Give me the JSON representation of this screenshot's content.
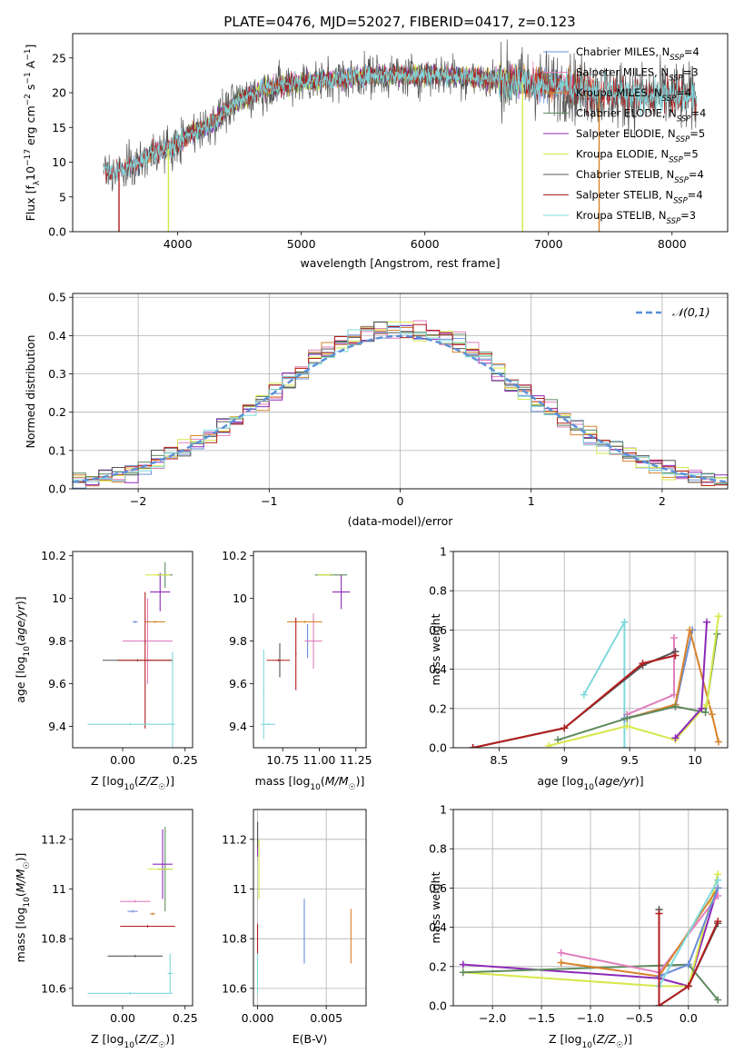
{
  "colors": {
    "Chabrier MILES": "#6a8fd8",
    "Salpeter MILES": "#e07fbf",
    "Kroupa MILES": "#d8822b",
    "Chabrier ELODIE": "#5f8a5f",
    "Salpeter ELODIE": "#8e2ab8",
    "Kroupa ELODIE": "#d6e84a",
    "Chabrier STELIB": "#555555",
    "Salpeter STELIB": "#b21e1e",
    "Kroupa STELIB": "#7fd8dc"
  },
  "chart_data": [
    {
      "id": "spectrum",
      "type": "line",
      "title": "PLATE=0476, MJD=52027, FIBERID=0417, z=0.123",
      "xlabel": "wavelength [Angstrom, rest frame]",
      "ylabel": "Flux [fλ10⁻¹⁷ erg cm⁻² s⁻¹ A⁻¹]",
      "xlim": [
        3150,
        8450
      ],
      "ylim": [
        0,
        28.5
      ],
      "xticks": [
        4000,
        5000,
        6000,
        7000,
        8000
      ],
      "yticks": [
        0,
        5,
        10,
        15,
        20,
        25
      ],
      "legend": [
        {
          "label": "Chabrier MILES, N",
          "sub": "SSP",
          "tail": "=4",
          "model": "Chabrier MILES"
        },
        {
          "label": "Salpeter MILES, N",
          "sub": "SSP",
          "tail": "=3",
          "model": "Salpeter MILES"
        },
        {
          "label": "Kroupa MILES, N",
          "sub": "SSP",
          "tail": "=4",
          "model": "Kroupa MILES"
        },
        {
          "label": "Chabrier ELODIE, N",
          "sub": "SSP",
          "tail": "=4",
          "model": "Chabrier ELODIE"
        },
        {
          "label": "Salpeter ELODIE, N",
          "sub": "SSP",
          "tail": "=5",
          "model": "Salpeter ELODIE"
        },
        {
          "label": "Kroupa ELODIE, N",
          "sub": "SSP",
          "tail": "=5",
          "model": "Kroupa ELODIE"
        },
        {
          "label": "Chabrier STELIB, N",
          "sub": "SSP",
          "tail": "=4",
          "model": "Chabrier STELIB"
        },
        {
          "label": "Salpeter STELIB, N",
          "sub": "SSP",
          "tail": "=4",
          "model": "Salpeter STELIB"
        },
        {
          "label": "Kroupa STELIB, N",
          "sub": "SSP",
          "tail": "=3",
          "model": "Kroupa STELIB"
        }
      ],
      "legend_position": "upper right",
      "continuum": [
        [
          3400,
          9
        ],
        [
          3500,
          8.5
        ],
        [
          3650,
          9.5
        ],
        [
          3800,
          11.5
        ],
        [
          3950,
          12
        ],
        [
          4100,
          14
        ],
        [
          4300,
          16
        ],
        [
          4500,
          19
        ],
        [
          4700,
          20.5
        ],
        [
          5000,
          21.5
        ],
        [
          5300,
          22
        ],
        [
          5600,
          22.5
        ],
        [
          5900,
          22.5
        ],
        [
          6200,
          22.5
        ],
        [
          6500,
          22
        ],
        [
          6800,
          21.5
        ],
        [
          7100,
          21
        ],
        [
          7400,
          20
        ],
        [
          7700,
          19.5
        ],
        [
          8000,
          19.5
        ],
        [
          8200,
          19
        ]
      ],
      "model_ranges": {
        "Chabrier MILES": [
          3540,
          7410
        ],
        "Salpeter MILES": [
          3540,
          7410
        ],
        "Kroupa MILES": [
          3540,
          7410
        ],
        "Chabrier ELODIE": [
          3900,
          6800
        ],
        "Salpeter ELODIE": [
          3900,
          6800
        ],
        "Kroupa ELODIE": [
          3900,
          6800
        ],
        "Chabrier STELIB": [
          3400,
          8200
        ],
        "Salpeter STELIB": [
          3400,
          8200
        ],
        "Kroupa STELIB": [
          3400,
          8200
        ]
      },
      "drops": [
        {
          "model": "Salpeter STELIB",
          "x": 3525
        },
        {
          "model": "Kroupa ELODIE",
          "x": 3925
        },
        {
          "model": "Kroupa ELODIE",
          "x": 6790
        },
        {
          "model": "Kroupa MILES",
          "x": 7410
        }
      ]
    },
    {
      "id": "residuals",
      "type": "histogram",
      "xlabel": "(data-model)/error",
      "ylabel": "Normed distribution",
      "xlim": [
        -2.5,
        2.5
      ],
      "ylim": [
        0,
        0.51
      ],
      "xticks": [
        -2,
        -1,
        0,
        1,
        2
      ],
      "yticks": [
        0.0,
        0.1,
        0.2,
        0.3,
        0.4,
        0.5
      ],
      "bin_width": 0.1,
      "reference": {
        "label": "𝒩(0,1)",
        "mean": 0,
        "sigma": 1
      },
      "legend_position": "upper right",
      "grid": true
    },
    {
      "id": "age-vs-Z",
      "type": "errorbar",
      "xlabel": "Z [log₁₀(Z/Z☉)]",
      "ylabel": "age  [log₁₀(age/yr)]",
      "xlim": [
        -0.2,
        0.28
      ],
      "ylim": [
        9.3,
        10.22
      ],
      "xticks": [
        0.0,
        0.25
      ],
      "xticklabels": [
        "0.00",
        "0.25"
      ],
      "yticks": [
        9.4,
        9.6,
        9.8,
        10.0,
        10.2
      ],
      "points": [
        {
          "model": "Chabrier MILES",
          "x": 0.05,
          "xerr": 0.01,
          "y": 9.89,
          "yerr": 0.005
        },
        {
          "model": "Salpeter MILES",
          "x": 0.1,
          "xerr": 0.1,
          "y": 9.8,
          "yerr": 0.2
        },
        {
          "model": "Kroupa MILES",
          "x": 0.13,
          "xerr": 0.04,
          "y": 9.89,
          "yerr": 0.005
        },
        {
          "model": "Chabrier ELODIE",
          "x": 0.17,
          "xerr": 0.03,
          "y": 10.11,
          "yerr": 0.06
        },
        {
          "model": "Salpeter ELODIE",
          "x": 0.15,
          "xerr": 0.04,
          "y": 10.03,
          "yerr": 0.09
        },
        {
          "model": "Kroupa ELODIE",
          "x": 0.14,
          "xerr": 0.05,
          "y": 10.11,
          "yerr": 0.005
        },
        {
          "model": "Chabrier STELIB",
          "x": 0.06,
          "xerr": 0.14,
          "y": 9.71,
          "yerr": 0.005
        },
        {
          "model": "Salpeter STELIB",
          "x": 0.09,
          "xerr": 0.11,
          "y": 9.71,
          "yerr": 0.32
        },
        {
          "model": "Kroupa STELIB",
          "x": 0.2,
          "xerr": 0.01,
          "y": 9.41,
          "yerr": 0.34
        },
        {
          "model": "Kroupa STELIB",
          "x": 0.03,
          "xerr": 0.17,
          "y": 9.41,
          "yerr": 0.005
        }
      ]
    },
    {
      "id": "age-vs-mass",
      "type": "errorbar",
      "xlabel": "mass [log₁₀(M/M☉)]",
      "ylabel": "",
      "xlim": [
        10.55,
        11.32
      ],
      "ylim": [
        9.3,
        10.22
      ],
      "xticks": [
        10.75,
        11.0,
        11.25
      ],
      "xticklabels": [
        "10.75",
        "11.00",
        "11.25"
      ],
      "yticks": [
        9.4,
        9.6,
        9.8,
        10.0,
        10.2
      ],
      "points": [
        {
          "model": "Chabrier MILES",
          "x": 10.92,
          "xerr": 0.005,
          "y": 9.8,
          "yerr": 0.08
        },
        {
          "model": "Salpeter MILES",
          "x": 10.96,
          "xerr": 0.06,
          "y": 9.8,
          "yerr": 0.13
        },
        {
          "model": "Kroupa MILES",
          "x": 10.9,
          "xerr": 0.12,
          "y": 9.89,
          "yerr": 0.005
        },
        {
          "model": "Chabrier ELODIE",
          "x": 11.08,
          "xerr": 0.11,
          "y": 10.11,
          "yerr": 0.005
        },
        {
          "model": "Salpeter ELODIE",
          "x": 11.15,
          "xerr": 0.06,
          "y": 10.03,
          "yerr": 0.08
        },
        {
          "model": "Kroupa ELODIE",
          "x": 11.04,
          "xerr": 0.05,
          "y": 10.11,
          "yerr": 0.005
        },
        {
          "model": "Chabrier STELIB",
          "x": 10.73,
          "xerr": 0.005,
          "y": 9.71,
          "yerr": 0.08
        },
        {
          "model": "Salpeter STELIB",
          "x": 10.84,
          "xerr": 0.005,
          "y": 9.74,
          "yerr": 0.17
        },
        {
          "model": "Salpeter STELIB",
          "x": 10.72,
          "xerr": 0.08,
          "y": 9.71,
          "yerr": 0.005
        },
        {
          "model": "Kroupa STELIB",
          "x": 10.62,
          "xerr": 0.005,
          "y": 9.55,
          "yerr": 0.21
        },
        {
          "model": "Kroupa STELIB",
          "x": 10.65,
          "xerr": 0.05,
          "y": 9.41,
          "yerr": 0.005
        }
      ]
    },
    {
      "id": "weight-vs-age",
      "type": "line",
      "xlabel": "age  [log₁₀(age/yr)]",
      "ylabel": "mass weight",
      "xlim": [
        8.15,
        10.25
      ],
      "ylim": [
        0,
        1
      ],
      "xticks": [
        8.5,
        9.0,
        9.5,
        10.0
      ],
      "yticks": [
        0.0,
        0.2,
        0.4,
        0.6,
        0.8,
        1.0
      ],
      "grid": true,
      "series": [
        {
          "model": "Kroupa STELIB",
          "x": [
            9.15,
            9.46,
            9.46
          ],
          "y": [
            0.27,
            0.64,
            0.0
          ]
        },
        {
          "model": "Salpeter MILES",
          "x": [
            9.48,
            9.84,
            9.84
          ],
          "y": [
            0.17,
            0.27,
            0.56
          ]
        },
        {
          "model": "Chabrier MILES",
          "x": [
            9.46,
            9.85,
            9.98
          ],
          "y": [
            0.15,
            0.21,
            0.6
          ]
        },
        {
          "model": "Kroupa MILES",
          "x": [
            9.48,
            9.85,
            9.96,
            10.13,
            10.18
          ],
          "y": [
            0.15,
            0.22,
            0.6,
            0.17,
            0.03
          ]
        },
        {
          "model": "Chabrier ELODIE",
          "x": [
            8.95,
            9.48,
            9.85,
            10.08,
            10.17
          ],
          "y": [
            0.04,
            0.15,
            0.21,
            0.18,
            0.58
          ]
        },
        {
          "model": "Kroupa ELODIE",
          "x": [
            8.88,
            9.48,
            9.85,
            10.09,
            10.18
          ],
          "y": [
            0.01,
            0.11,
            0.04,
            0.22,
            0.67
          ]
        },
        {
          "model": "Salpeter ELODIE",
          "x": [
            9.85,
            10.05,
            10.09
          ],
          "y": [
            0.05,
            0.2,
            0.64
          ]
        },
        {
          "model": "Chabrier STELIB",
          "x": [
            8.3,
            9.0,
            9.6,
            9.85
          ],
          "y": [
            0.0,
            0.1,
            0.42,
            0.49
          ]
        },
        {
          "model": "Salpeter STELIB",
          "x": [
            8.3,
            9.0,
            9.6,
            9.85
          ],
          "y": [
            0.0,
            0.1,
            0.43,
            0.47
          ]
        }
      ]
    },
    {
      "id": "mass-vs-Z",
      "type": "errorbar",
      "xlabel": "Z [log₁₀(Z/Z☉)]",
      "ylabel": "mass [log₁₀(M/M☉)]",
      "xlim": [
        -0.2,
        0.28
      ],
      "ylim": [
        10.53,
        11.32
      ],
      "xticks": [
        0.0,
        0.25
      ],
      "xticklabels": [
        "0.00",
        "0.25"
      ],
      "yticks": [
        10.6,
        10.8,
        11.0,
        11.2
      ],
      "points": [
        {
          "model": "Chabrier MILES",
          "x": 0.04,
          "xerr": 0.02,
          "y": 10.91,
          "yerr": 0.005
        },
        {
          "model": "Salpeter MILES",
          "x": 0.05,
          "xerr": 0.06,
          "y": 10.95,
          "yerr": 0.005
        },
        {
          "model": "Kroupa MILES",
          "x": 0.12,
          "xerr": 0.01,
          "y": 10.9,
          "yerr": 0.005
        },
        {
          "model": "Chabrier ELODIE",
          "x": 0.17,
          "xerr": 0.03,
          "y": 11.08,
          "yerr": 0.17
        },
        {
          "model": "Salpeter ELODIE",
          "x": 0.16,
          "xerr": 0.04,
          "y": 11.1,
          "yerr": 0.14
        },
        {
          "model": "Kroupa ELODIE",
          "x": 0.15,
          "xerr": 0.05,
          "y": 11.08,
          "yerr": 0.005
        },
        {
          "model": "Chabrier STELIB",
          "x": 0.05,
          "xerr": 0.11,
          "y": 10.73,
          "yerr": 0.005
        },
        {
          "model": "Salpeter STELIB",
          "x": 0.1,
          "xerr": 0.11,
          "y": 10.85,
          "yerr": 0.005
        },
        {
          "model": "Kroupa STELIB",
          "x": 0.19,
          "xerr": 0.01,
          "y": 10.66,
          "yerr": 0.08
        },
        {
          "model": "Kroupa STELIB",
          "x": 0.03,
          "xerr": 0.17,
          "y": 10.58,
          "yerr": 0.005
        }
      ]
    },
    {
      "id": "mass-vs-EBV",
      "type": "errorbar",
      "xlabel": "E(B-V)",
      "ylabel": "",
      "xlim": [
        -0.0003,
        0.0079
      ],
      "ylim": [
        10.53,
        11.32
      ],
      "xticks": [
        0.0,
        0.005
      ],
      "xticklabels": [
        "0.000",
        "0.005"
      ],
      "yticks": [
        10.6,
        10.8,
        11.0,
        11.2
      ],
      "grid": true,
      "points": [
        {
          "model": "Chabrier MILES",
          "x": 0.0034,
          "xerr": 0.0,
          "y": 10.83,
          "yerr": 0.13
        },
        {
          "model": "Kroupa MILES",
          "x": 0.0068,
          "xerr": 0.0,
          "y": 10.81,
          "yerr": 0.11
        },
        {
          "model": "Salpeter ELODIE",
          "x": 0.0,
          "xerr": 0.0,
          "y": 11.2,
          "yerr": 0.07
        },
        {
          "model": "Kroupa ELODIE",
          "x": 0.0001,
          "xerr": 0.0,
          "y": 11.08,
          "yerr": 0.12
        },
        {
          "model": "Salpeter STELIB",
          "x": 0.0,
          "xerr": 0.0,
          "y": 10.8,
          "yerr": 0.06
        },
        {
          "model": "Kroupa STELIB",
          "x": 0.0,
          "xerr": 0.0,
          "y": 10.66,
          "yerr": 0.08
        },
        {
          "model": "Chabrier STELIB",
          "x": 0.0,
          "xerr": 0.0,
          "y": 11.22,
          "yerr": 0.05
        }
      ]
    },
    {
      "id": "weight-vs-Z",
      "type": "line",
      "xlabel": "Z [log₁₀(Z/Z☉)]",
      "ylabel": "mass weight",
      "xlim": [
        -2.4,
        0.4
      ],
      "ylim": [
        0,
        1
      ],
      "xticks": [
        -2.0,
        -1.5,
        -1.0,
        -0.5,
        0.0
      ],
      "xticklabels": [
        "−2.0",
        "−1.5",
        "−1.0",
        "−0.5",
        "0.0"
      ],
      "yticks": [
        0.0,
        0.2,
        0.4,
        0.6,
        0.8,
        1.0
      ],
      "grid": true,
      "series": [
        {
          "model": "Salpeter ELODIE",
          "x": [
            -2.3,
            -0.3,
            0.0,
            0.3
          ],
          "y": [
            0.21,
            0.14,
            0.1,
            0.6
          ]
        },
        {
          "model": "Kroupa ELODIE",
          "x": [
            -2.3,
            -0.3,
            0.0,
            0.3
          ],
          "y": [
            0.17,
            0.1,
            0.1,
            0.67
          ]
        },
        {
          "model": "Chabrier ELODIE",
          "x": [
            -2.3,
            0.0,
            0.3
          ],
          "y": [
            0.17,
            0.21,
            0.03
          ]
        },
        {
          "model": "Salpeter MILES",
          "x": [
            -1.3,
            -0.3,
            0.3
          ],
          "y": [
            0.27,
            0.17,
            0.56
          ]
        },
        {
          "model": "Kroupa MILES",
          "x": [
            -1.3,
            -0.3,
            0.3
          ],
          "y": [
            0.22,
            0.15,
            0.6
          ]
        },
        {
          "model": "Chabrier MILES",
          "x": [
            -0.3,
            0.0,
            0.3
          ],
          "y": [
            0.15,
            0.21,
            0.6
          ]
        },
        {
          "model": "Kroupa STELIB",
          "x": [
            -0.3,
            0.3
          ],
          "y": [
            0.1,
            0.64
          ]
        },
        {
          "model": "Chabrier STELIB",
          "x": [
            -0.3,
            -0.3,
            0.0,
            0.3
          ],
          "y": [
            0.49,
            0.0,
            0.1,
            0.42
          ]
        },
        {
          "model": "Salpeter STELIB",
          "x": [
            -0.3,
            -0.3,
            0.0,
            0.3
          ],
          "y": [
            0.47,
            0.0,
            0.1,
            0.43
          ]
        }
      ]
    }
  ]
}
